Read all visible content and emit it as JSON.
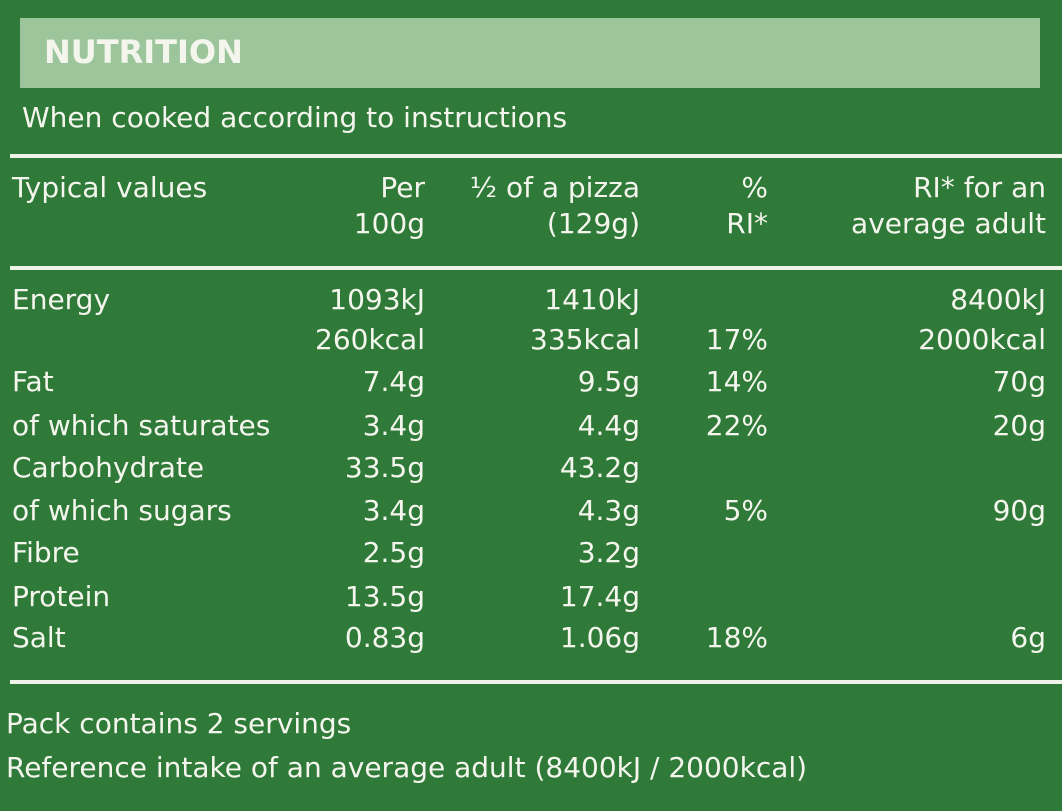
{
  "header": {
    "title": "NUTRITION",
    "subtitle": "When cooked according to instructions"
  },
  "table": {
    "columns": [
      {
        "key": "label",
        "lines": [
          "Typical values"
        ]
      },
      {
        "key": "per_100g",
        "lines": [
          "Per",
          "100g"
        ]
      },
      {
        "key": "half_pizza",
        "lines": [
          "½ of a pizza",
          "(129g)"
        ]
      },
      {
        "key": "ri_percent",
        "lines": [
          "%",
          "RI*"
        ]
      },
      {
        "key": "ri_adult",
        "lines": [
          "RI* for an",
          "average adult"
        ]
      }
    ],
    "rows": [
      {
        "label": "Energy",
        "per_100g": "1093kJ",
        "half_pizza": "1410kJ",
        "ri_adult": "8400kJ"
      },
      {
        "per_100g": "260kcal",
        "half_pizza": "335kcal",
        "ri_percent": "17%",
        "ri_adult": "2000kcal"
      },
      {
        "label": "Fat",
        "per_100g": "7.4g",
        "half_pizza": "9.5g",
        "ri_percent": "14%",
        "ri_adult": "70g"
      },
      {
        "label": "of which saturates",
        "per_100g": "3.4g",
        "half_pizza": "4.4g",
        "ri_percent": "22%",
        "ri_adult": "20g"
      },
      {
        "label": "Carbohydrate",
        "per_100g": "33.5g",
        "half_pizza": "43.2g"
      },
      {
        "label": "of which sugars",
        "per_100g": "3.4g",
        "half_pizza": "4.3g",
        "ri_percent": "5%",
        "ri_adult": "90g"
      },
      {
        "label": "Fibre",
        "per_100g": "2.5g",
        "half_pizza": "3.2g"
      },
      {
        "label": "Protein",
        "per_100g": "13.5g",
        "half_pizza": "17.4g"
      },
      {
        "label": "Salt",
        "per_100g": "0.83g",
        "half_pizza": "1.06g",
        "ri_percent": "18%",
        "ri_adult": "6g"
      }
    ]
  },
  "footer": {
    "notes": [
      "Pack contains 2 servings",
      "Reference intake of an average adult (8400kJ / 2000kcal)"
    ]
  }
}
